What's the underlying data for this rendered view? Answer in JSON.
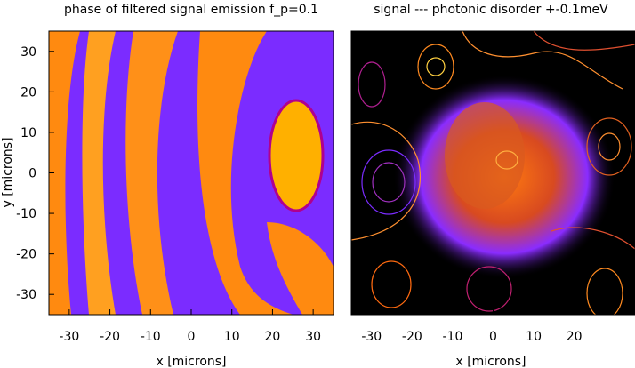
{
  "chart_data": [
    {
      "type": "heatmap",
      "title": "phase of filtered signal emission f_p=0.1",
      "xlabel": "x [microns]",
      "ylabel": "y [microns]",
      "xlim": [
        -35,
        35
      ],
      "ylim": [
        -35,
        35
      ],
      "xticks": [
        -30,
        -20,
        -10,
        0,
        10,
        20,
        30
      ],
      "yticks": [
        -30,
        -20,
        -10,
        0,
        10,
        20,
        30
      ],
      "colormap": [
        "#7b2cff",
        "#b0008f",
        "#ff6a00",
        "#ffb000",
        "#ffe060"
      ],
      "pattern": "wavefront phase bands with closed ring centered near (25, 5)"
    },
    {
      "type": "heatmap",
      "title": "signal --- photonic disorder +-0.1meV",
      "xlabel": "x [microns]",
      "xlim": [
        -35,
        35
      ],
      "ylim": [
        -35,
        35
      ],
      "xticks": [
        -30,
        -20,
        -10,
        0,
        10,
        20
      ],
      "background": "#000000",
      "overlay": "contour lines of photonic disorder potential",
      "colormap": [
        "#000000",
        "#6a1cff",
        "#c02060",
        "#ff5a00",
        "#ffb040"
      ],
      "pattern": "bright blob centered near (0, 5)"
    }
  ]
}
